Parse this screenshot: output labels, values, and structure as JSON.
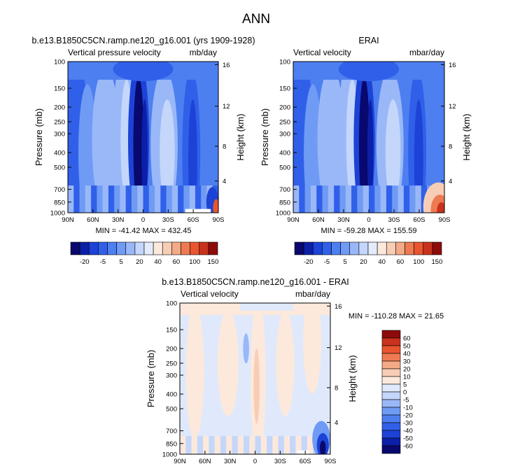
{
  "main_title": "ANN",
  "colors": {
    "cont_levels": [
      "#08086e",
      "#0b1fa8",
      "#1c43d6",
      "#3060ea",
      "#4d7ff0",
      "#6f9bf5",
      "#9ab8f8",
      "#c4d6fa",
      "#e3ecfc",
      "#fce9dc",
      "#f8cdb6",
      "#f3aa86",
      "#ee7a52",
      "#e85530",
      "#c9321d",
      "#8e0b0b"
    ],
    "diff_levels": [
      "#08086e",
      "#0b1fa8",
      "#1c43d6",
      "#3060ea",
      "#4d7ff0",
      "#6f9bf5",
      "#9ab8f8",
      "#c4d6fa",
      "#dfe9fb",
      "#fce9dc",
      "#f8cdb6",
      "#f3aa86",
      "#ee7a52",
      "#e85530",
      "#c9321d",
      "#8e0b0b"
    ]
  },
  "chart_data": [
    {
      "type": "heatmap",
      "id": "p1",
      "title": "b.e13.B1850C5CN.ramp.ne120_g16.001 (yrs 1909-1928)",
      "left_label": "Vertical pressure velocity",
      "right_label": "mb/day",
      "xlabel": "",
      "ylabel": "Pressure (mb)",
      "ylabel_right": "Height (km)",
      "x_ticks": [
        "90N",
        "60N",
        "30N",
        "0",
        "30S",
        "60S",
        "90S"
      ],
      "y_ticks": [
        "100",
        "150",
        "200",
        "250",
        "300",
        "400",
        "500",
        "700",
        "850",
        "1000"
      ],
      "y_ticks_right": [
        "16",
        "12",
        "8",
        "4"
      ],
      "ylim": [
        100,
        1000
      ],
      "stats": "MIN = -41.42   MAX = 432.45",
      "min": -41.42,
      "max": 432.45
    },
    {
      "type": "heatmap",
      "id": "p2",
      "title": "ERAI",
      "left_label": "Vertical velocity",
      "right_label": "mbar/day",
      "xlabel": "",
      "ylabel": "Pressure (mb)",
      "ylabel_right": "Height (km)",
      "x_ticks": [
        "90N",
        "60N",
        "30N",
        "0",
        "30S",
        "60S",
        "90S"
      ],
      "y_ticks": [
        "100",
        "150",
        "200",
        "250",
        "300",
        "400",
        "500",
        "700",
        "850",
        "1000"
      ],
      "y_ticks_right": [
        "16",
        "12",
        "8",
        "4"
      ],
      "ylim": [
        100,
        1000
      ],
      "stats": "MIN = -59.28   MAX = 155.59",
      "min": -59.28,
      "max": 155.59
    },
    {
      "type": "heatmap",
      "id": "p3",
      "title": "b.e13.B1850C5CN.ramp.ne120_g16.001 - ERAI",
      "left_label": "Vertical velocity",
      "right_label": "mbar/day",
      "xlabel": "",
      "ylabel": "Pressure (mb)",
      "ylabel_right": "Height (km)",
      "x_ticks": [
        "90N",
        "60N",
        "30N",
        "0",
        "30S",
        "60S",
        "90S"
      ],
      "y_ticks": [
        "100",
        "150",
        "200",
        "250",
        "300",
        "400",
        "500",
        "700",
        "850",
        "1000"
      ],
      "y_ticks_right": [
        "16",
        "12",
        "8",
        "4"
      ],
      "ylim": [
        100,
        1000
      ],
      "stats": "MIN = -110.28   MAX =  21.65",
      "min": -110.28,
      "max": 21.65
    }
  ],
  "colorbar_top": {
    "tick_labels": [
      "-20",
      "-5",
      "5",
      "20",
      "40",
      "60",
      "100",
      "150"
    ]
  },
  "colorbar_diff": {
    "tick_labels": [
      "60",
      "50",
      "40",
      "30",
      "20",
      "10",
      "5",
      "0",
      "-5",
      "-10",
      "-20",
      "-30",
      "-40",
      "-50",
      "-60"
    ]
  }
}
